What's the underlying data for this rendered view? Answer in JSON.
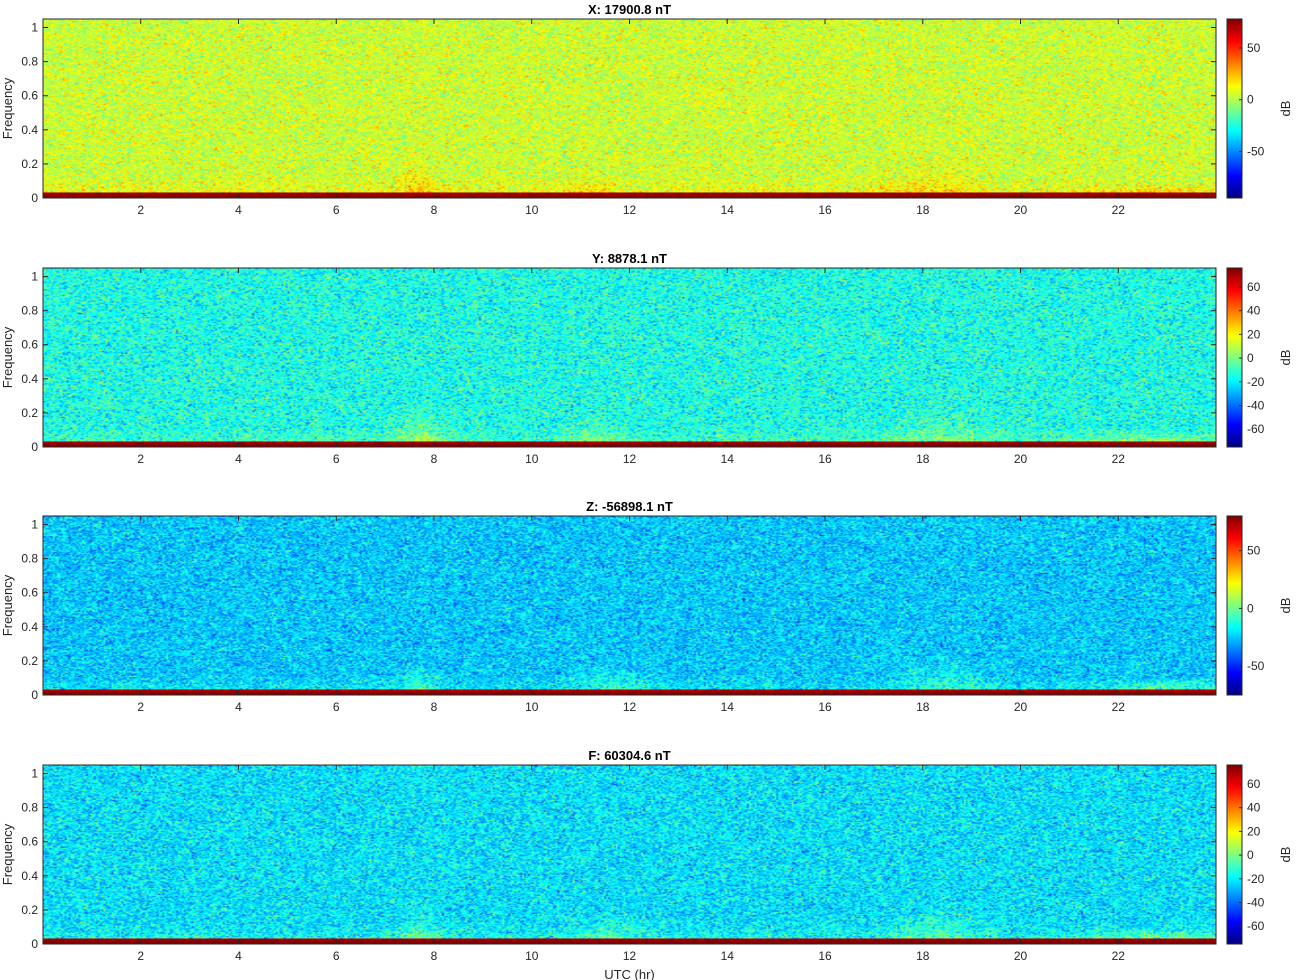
{
  "chart_data": [
    {
      "type": "heatmap",
      "title": "X: 17900.8 nT",
      "xlabel": "",
      "ylabel": "Frequency",
      "xlim": [
        0,
        24
      ],
      "ylim": [
        0,
        1.05
      ],
      "xticks": [
        2,
        4,
        6,
        8,
        10,
        12,
        14,
        16,
        18,
        20,
        22
      ],
      "yticks": [
        0,
        0.2,
        0.4,
        0.6,
        0.8,
        1
      ],
      "colorbar": {
        "label": "dB",
        "clim": [
          -95,
          78
        ],
        "ticks": [
          -50,
          0,
          50
        ]
      },
      "background_level_db": 5,
      "low_frequency_band_db": 75,
      "bursts": [
        {
          "center_hr": 7.7,
          "width_hr": 0.6,
          "max_freq": 0.25,
          "boost_db": 18
        },
        {
          "center_hr": 11.2,
          "width_hr": 0.8,
          "max_freq": 0.2,
          "boost_db": 12
        },
        {
          "center_hr": 18.2,
          "width_hr": 1.4,
          "max_freq": 0.3,
          "boost_db": 12
        },
        {
          "center_hr": 22.7,
          "width_hr": 2.0,
          "max_freq": 0.08,
          "boost_db": 20
        }
      ]
    },
    {
      "type": "heatmap",
      "title": "Y: 8878.1 nT",
      "xlabel": "",
      "ylabel": "Frequency",
      "xlim": [
        0,
        24
      ],
      "ylim": [
        0,
        1.05
      ],
      "xticks": [
        2,
        4,
        6,
        8,
        10,
        12,
        14,
        16,
        18,
        20,
        22
      ],
      "yticks": [
        0,
        0.2,
        0.4,
        0.6,
        0.8,
        1
      ],
      "colorbar": {
        "label": "dB",
        "clim": [
          -75,
          76
        ],
        "ticks": [
          -60,
          -40,
          -20,
          0,
          20,
          40,
          60
        ]
      },
      "background_level_db": -15,
      "low_frequency_band_db": 74,
      "bursts": [
        {
          "center_hr": 7.7,
          "width_hr": 0.8,
          "max_freq": 0.25,
          "boost_db": 20
        },
        {
          "center_hr": 11.3,
          "width_hr": 0.9,
          "max_freq": 0.2,
          "boost_db": 14
        },
        {
          "center_hr": 18.4,
          "width_hr": 1.6,
          "max_freq": 0.25,
          "boost_db": 14
        },
        {
          "center_hr": 22.6,
          "width_hr": 2.4,
          "max_freq": 0.1,
          "boost_db": 22
        }
      ]
    },
    {
      "type": "heatmap",
      "title": "Z: -56898.1 nT",
      "xlabel": "",
      "ylabel": "Frequency",
      "xlim": [
        0,
        24
      ],
      "ylim": [
        0,
        1.05
      ],
      "xticks": [
        2,
        4,
        6,
        8,
        10,
        12,
        14,
        16,
        18,
        20,
        22
      ],
      "yticks": [
        0,
        0.2,
        0.4,
        0.6,
        0.8,
        1
      ],
      "colorbar": {
        "label": "dB",
        "clim": [
          -75,
          80
        ],
        "ticks": [
          -50,
          0,
          50
        ]
      },
      "background_level_db": -25,
      "low_frequency_band_db": 76,
      "bursts": [
        {
          "center_hr": 7.7,
          "width_hr": 0.6,
          "max_freq": 0.2,
          "boost_db": 22
        },
        {
          "center_hr": 11.6,
          "width_hr": 1.2,
          "max_freq": 0.2,
          "boost_db": 16
        },
        {
          "center_hr": 18.4,
          "width_hr": 1.6,
          "max_freq": 0.25,
          "boost_db": 16
        },
        {
          "center_hr": 22.8,
          "width_hr": 2.2,
          "max_freq": 0.1,
          "boost_db": 26
        }
      ]
    },
    {
      "type": "heatmap",
      "title": "F: 60304.6 nT",
      "xlabel": "UTC (hr)",
      "ylabel": "Frequency",
      "xlim": [
        0,
        24
      ],
      "ylim": [
        0,
        1.05
      ],
      "xticks": [
        2,
        4,
        6,
        8,
        10,
        12,
        14,
        16,
        18,
        20,
        22
      ],
      "yticks": [
        0,
        0.2,
        0.4,
        0.6,
        0.8,
        1
      ],
      "colorbar": {
        "label": "dB",
        "clim": [
          -75,
          76
        ],
        "ticks": [
          -60,
          -40,
          -20,
          0,
          20,
          40,
          60
        ]
      },
      "background_level_db": -22,
      "low_frequency_band_db": 74,
      "bursts": [
        {
          "center_hr": 7.7,
          "width_hr": 0.6,
          "max_freq": 0.2,
          "boost_db": 22
        },
        {
          "center_hr": 11.6,
          "width_hr": 1.2,
          "max_freq": 0.2,
          "boost_db": 14
        },
        {
          "center_hr": 18.3,
          "width_hr": 1.4,
          "max_freq": 0.25,
          "boost_db": 16
        },
        {
          "center_hr": 22.8,
          "width_hr": 2.2,
          "max_freq": 0.1,
          "boost_db": 24
        }
      ]
    }
  ]
}
